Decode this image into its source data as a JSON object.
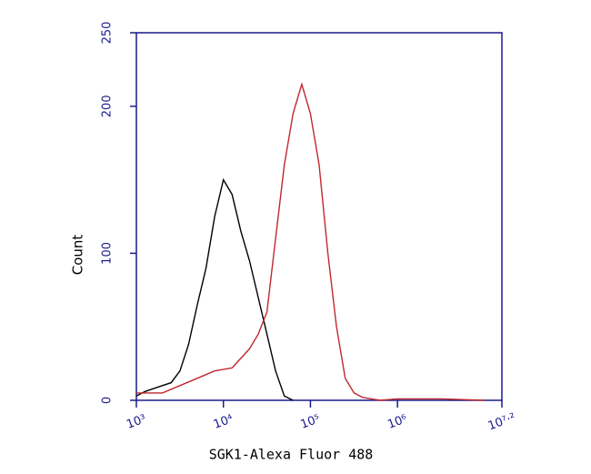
{
  "chart_data": {
    "type": "line",
    "x_label": "SGK1-Alexa Fluor 488",
    "y_label": "Count",
    "x_log_scale": true,
    "xlim": [
      1000,
      15848932
    ],
    "xticks": [
      {
        "value": 1000,
        "label": "10³"
      },
      {
        "value": 10000,
        "label": "10⁴"
      },
      {
        "value": 100000,
        "label": "10⁵"
      },
      {
        "value": 1000000,
        "label": "10⁶"
      },
      {
        "value": 15848932,
        "label": "10⁷·²"
      }
    ],
    "ylim": [
      0,
      250
    ],
    "yticks": [
      0,
      100,
      200,
      250
    ],
    "series": [
      {
        "color": "#000000",
        "x": [
          1000,
          1259,
          1585,
          1995,
          2512,
          3162,
          3981,
          5012,
          6310,
          7943,
          10000,
          12589,
          15849,
          19953,
          25119,
          31623,
          39811,
          50119,
          63096
        ],
        "values": [
          3,
          6,
          8,
          10,
          12,
          20,
          38,
          65,
          90,
          125,
          150,
          140,
          115,
          95,
          70,
          45,
          20,
          3,
          0
        ]
      },
      {
        "color": "#c0282d",
        "x": [
          1000,
          1995,
          3162,
          5012,
          7943,
          12589,
          19953,
          25119,
          31623,
          39811,
          50119,
          63096,
          79433,
          100000,
          125893,
          158489,
          199526,
          251189,
          316228,
          398107,
          501187,
          630957,
          1000000,
          3162278,
          10000000
        ],
        "values": [
          5,
          5,
          10,
          15,
          20,
          22,
          35,
          45,
          60,
          110,
          160,
          195,
          215,
          195,
          160,
          100,
          50,
          15,
          5,
          2,
          1,
          0,
          1,
          1,
          0
        ]
      }
    ]
  }
}
